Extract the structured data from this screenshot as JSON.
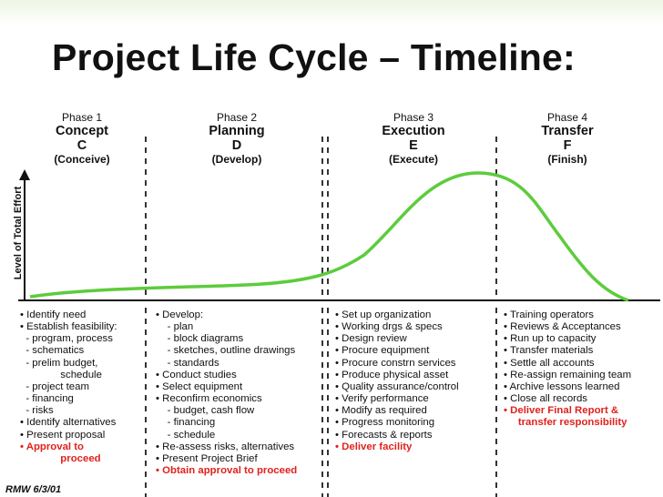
{
  "title": "Project Life Cycle – Timeline:",
  "y_axis_label": "Level of Total Effort",
  "footer": "RMW 6/3/01",
  "colors": {
    "curve": "#5ccc3c",
    "text": "#111111",
    "highlight": "#e0221c"
  },
  "phases": [
    {
      "number": "Phase 1",
      "name": "Concept",
      "letter": "C",
      "verb": "(Conceive)"
    },
    {
      "number": "Phase 2",
      "name": "Planning",
      "letter": "D",
      "verb": "(Develop)"
    },
    {
      "number": "Phase 3",
      "name": "Execution",
      "letter": "E",
      "verb": "(Execute)"
    },
    {
      "number": "Phase 4",
      "name": "Transfer",
      "letter": "F",
      "verb": "(Finish)"
    }
  ],
  "columns": [
    [
      "• Identify need",
      "• Establish feasibility:",
      "  - program, process",
      "  - schematics",
      "  - prelim budget,",
      "              schedule",
      "  - project team",
      "  - financing",
      "  - risks",
      "• Identify alternatives",
      "• Present proposal",
      "• Approval to",
      "              proceed"
    ],
    [
      "• Develop:",
      "    - plan",
      "    - block diagrams",
      "    - sketches, outline drawings",
      "    - standards",
      "• Conduct studies",
      "• Select equipment",
      "• Reconfirm economics",
      "    - budget, cash flow",
      "    - financing",
      "    - schedule",
      "• Re-assess risks, alternatives",
      "• Present Project Brief",
      "• Obtain approval to proceed"
    ],
    [
      "• Set up organization",
      "• Working drgs & specs",
      "• Design review",
      "• Procure equipment",
      "• Procure constrn services",
      "• Produce physical asset",
      "• Quality assurance/control",
      "• Verify performance",
      "• Modify as required",
      "• Progress monitoring",
      "• Forecasts & reports",
      "• Deliver facility"
    ],
    [
      "• Training operators",
      "• Reviews & Acceptances",
      "• Run up to capacity",
      "• Transfer materials",
      "• Settle all accounts",
      "• Re-assign remaining team",
      "• Archive lessons learned",
      "• Close all records",
      "• Deliver Final Report &",
      "     transfer responsibility"
    ]
  ],
  "red_rows": [
    [
      11,
      12
    ],
    [
      13
    ],
    [
      11
    ],
    [
      8,
      9
    ]
  ]
}
